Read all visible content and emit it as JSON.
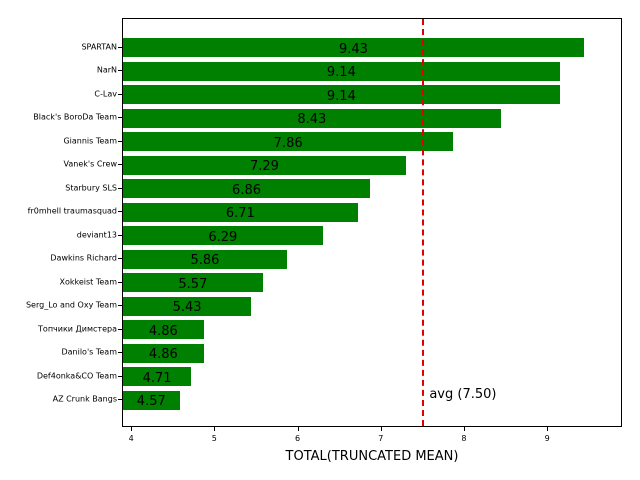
{
  "chart_data": {
    "type": "bar",
    "orientation": "horizontal",
    "title": "",
    "xlabel": "TOTAL(TRUNCATED MEAN)",
    "ylabel": "",
    "xlim": [
      3.89,
      9.9
    ],
    "xticks": [
      4,
      5,
      6,
      7,
      8,
      9
    ],
    "grid": false,
    "bar_color": "#008000",
    "categories": [
      "SPARTAN",
      "NarN",
      "C-Lav",
      "Black's BoroDa Team",
      "Giannis Team",
      "Vanek's Crew",
      "Starbury SLS",
      "fr0mhell traumasquad",
      "deviant13",
      "Dawkins Richard",
      "Xokkeist Team",
      "Serg_Lo and Oxy Team",
      "Топчики Димстера",
      "Danilo's Team",
      "Def4onka&CO Team",
      "AZ Crunk Bangs"
    ],
    "values": [
      9.43,
      9.14,
      9.14,
      8.43,
      7.86,
      7.29,
      6.86,
      6.71,
      6.29,
      5.86,
      5.57,
      5.43,
      4.86,
      4.86,
      4.71,
      4.57
    ],
    "value_labels": [
      "9.43",
      "9.14",
      "9.14",
      "8.43",
      "7.86",
      "7.29",
      "6.86",
      "6.71",
      "6.29",
      "5.86",
      "5.57",
      "5.43",
      "4.86",
      "4.86",
      "4.71",
      "4.57"
    ],
    "reference_line": {
      "value": 7.5,
      "label": "avg (7.50)",
      "style": "dashed",
      "color": "#e00000"
    }
  }
}
